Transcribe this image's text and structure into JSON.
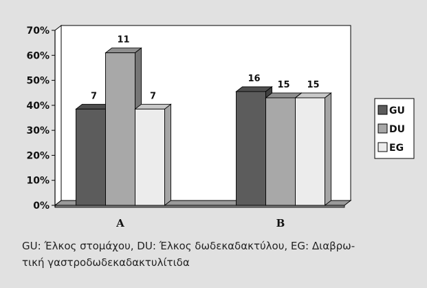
{
  "chart_data": {
    "type": "bar",
    "categories": [
      "A",
      "B"
    ],
    "series": [
      {
        "name": "GU",
        "values": [
          38.5,
          45.5
        ],
        "labels": [
          "7",
          "16"
        ],
        "color": "#5c5c5c"
      },
      {
        "name": "DU",
        "values": [
          61,
          43
        ],
        "labels": [
          "11",
          "15"
        ],
        "color": "#a8a8a8"
      },
      {
        "name": "EG",
        "values": [
          38.5,
          43
        ],
        "labels": [
          "7",
          "15"
        ],
        "color": "#ececec"
      }
    ],
    "yticks": [
      "0%",
      "10%",
      "20%",
      "30%",
      "40%",
      "50%",
      "60%",
      "70%"
    ],
    "ylim": [
      0,
      70
    ],
    "legend_position": "right",
    "grid": false
  },
  "caption": {
    "line1": "GU: Έλκος στομάχου, DU: Έλκος δωδεκαδακτύλου, EG: Διαβρω-",
    "line2": "τική γαστροδωδεκαδακτυλίτιδα"
  }
}
